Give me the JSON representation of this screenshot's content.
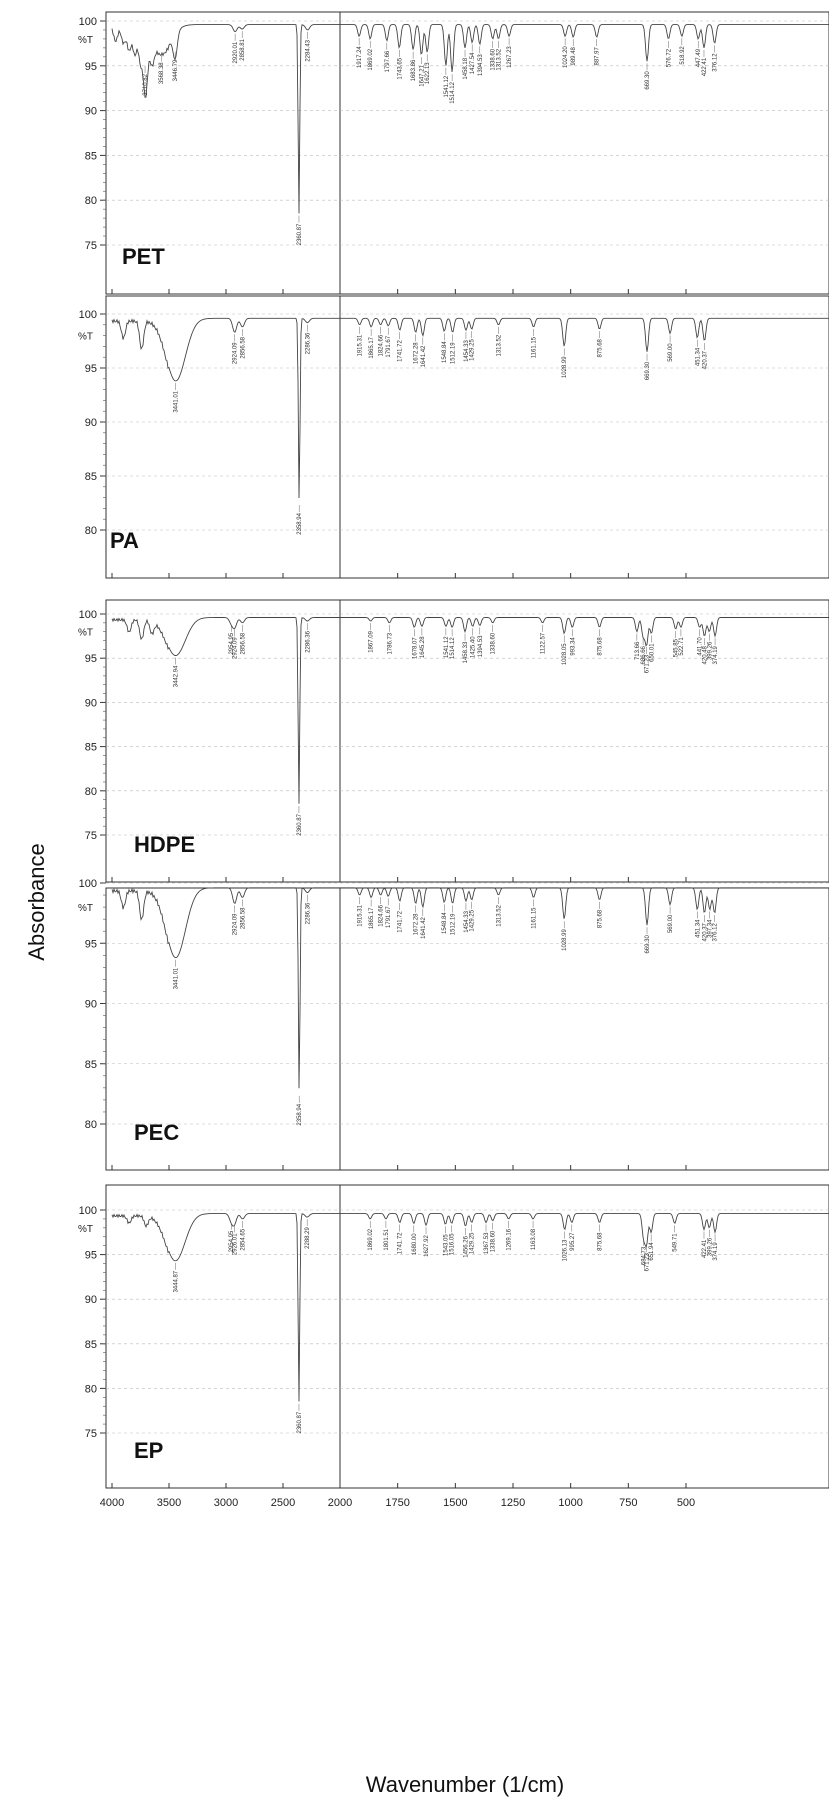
{
  "figure": {
    "ylabel": "Absorbance",
    "xlabel": "Wavenumber (1/cm)"
  },
  "chart_data": [
    {
      "type": "line",
      "name": "PET",
      "ylim": [
        73,
        101
      ],
      "yticks": [
        100,
        95,
        90,
        85,
        80,
        75
      ],
      "unit_label": "%T",
      "xlim": [
        4000,
        400
      ],
      "xticks": [
        4000,
        3500,
        3000,
        2500,
        2000,
        1750,
        1500,
        1250,
        1000,
        750,
        500
      ],
      "baseline": 99.6,
      "bands": [
        {
          "x": 3968,
          "y": 98.0
        },
        {
          "x": 3900,
          "y": 97.8
        },
        {
          "x": 3850,
          "y": 97.0
        },
        {
          "x": 3800,
          "y": 96.6
        },
        {
          "x": 3750,
          "y": 96.0
        },
        {
          "x": 3700,
          "y": 96.8
        },
        {
          "x": 3650,
          "y": 97.2
        },
        {
          "x": 3568,
          "y": 96.5,
          "label": "3568.38"
        },
        {
          "x": 3446,
          "y": 96.8,
          "label": "3446.79"
        },
        {
          "x": 3710,
          "y": 95.2,
          "label": "3710.82"
        },
        {
          "x": 2920,
          "y": 98.8,
          "label": "2920.01"
        },
        {
          "x": 2858,
          "y": 99.1,
          "label": "2858.81"
        },
        {
          "x": 2360,
          "y": 78.5,
          "label": "2360.87"
        },
        {
          "x": 2284,
          "y": 99.0,
          "label": "2284.43"
        },
        {
          "x": 1917,
          "y": 98.3,
          "label": "1917.24"
        },
        {
          "x": 1869,
          "y": 98.0,
          "label": "1869.02"
        },
        {
          "x": 1797,
          "y": 97.8,
          "label": "1797.66"
        },
        {
          "x": 1743,
          "y": 97.0,
          "label": "1743.65"
        },
        {
          "x": 1683,
          "y": 96.8,
          "label": "1683.86"
        },
        {
          "x": 1647,
          "y": 96.2,
          "label": "1647.21"
        },
        {
          "x": 1622,
          "y": 96.5,
          "label": "1622.13"
        },
        {
          "x": 1541,
          "y": 95.0,
          "label": "1541.12"
        },
        {
          "x": 1514,
          "y": 94.3,
          "label": "1514.12"
        },
        {
          "x": 1458,
          "y": 97.0,
          "label": "1458.18"
        },
        {
          "x": 1427,
          "y": 97.6,
          "label": "1427.54"
        },
        {
          "x": 1394,
          "y": 97.4,
          "label": "1394.53"
        },
        {
          "x": 1338,
          "y": 98.0,
          "label": "1338.60"
        },
        {
          "x": 1313,
          "y": 98.0,
          "label": "1313.52"
        },
        {
          "x": 1267,
          "y": 98.3,
          "label": "1267.23"
        },
        {
          "x": 1024,
          "y": 98.3,
          "label": "1024.20"
        },
        {
          "x": 989,
          "y": 98.2,
          "label": "989.48"
        },
        {
          "x": 887,
          "y": 98.2,
          "label": "887.97"
        },
        {
          "x": 669,
          "y": 95.5,
          "label": "669.30"
        },
        {
          "x": 576,
          "y": 98.0,
          "label": "576.72"
        },
        {
          "x": 518,
          "y": 98.3,
          "label": "518.92"
        },
        {
          "x": 447,
          "y": 98.0,
          "label": "447.49"
        },
        {
          "x": 422,
          "y": 97.0,
          "label": "422.41"
        },
        {
          "x": 376,
          "y": 97.5,
          "label": "376.12"
        }
      ]
    },
    {
      "type": "line",
      "name": "PA",
      "ylim": [
        78,
        101
      ],
      "yticks": [
        100,
        95,
        90,
        85,
        80
      ],
      "unit_label": "%T",
      "xlim": [
        4000,
        400
      ],
      "xticks": [
        4000,
        3500,
        3000,
        2500,
        2000,
        1750,
        1500,
        1250,
        1000,
        750,
        500
      ],
      "baseline": 99.6,
      "bands": [
        {
          "x": 3900,
          "y": 98.0
        },
        {
          "x": 3740,
          "y": 97.0
        },
        {
          "x": 3441,
          "y": 93.8,
          "label": "3441.01"
        },
        {
          "x": 2924,
          "y": 98.3,
          "label": "2924.09"
        },
        {
          "x": 2856,
          "y": 98.8,
          "label": "2856.58"
        },
        {
          "x": 2358,
          "y": 82.5,
          "label": "2358.94"
        },
        {
          "x": 2286,
          "y": 99.2,
          "label": "2286.36"
        },
        {
          "x": 1915,
          "y": 99.0,
          "label": "1915.31"
        },
        {
          "x": 1865,
          "y": 98.8,
          "label": "1865.17"
        },
        {
          "x": 1824,
          "y": 99.0,
          "label": "1824.66"
        },
        {
          "x": 1791,
          "y": 98.9,
          "label": "1791.67"
        },
        {
          "x": 1741,
          "y": 98.5,
          "label": "1741.72"
        },
        {
          "x": 1672,
          "y": 98.3,
          "label": "1672.28"
        },
        {
          "x": 1641,
          "y": 98.0,
          "label": "1641.42"
        },
        {
          "x": 1548,
          "y": 98.4,
          "label": "1548.84"
        },
        {
          "x": 1512,
          "y": 98.3,
          "label": "1512.19"
        },
        {
          "x": 1454,
          "y": 98.5,
          "label": "1454.33"
        },
        {
          "x": 1429,
          "y": 98.6,
          "label": "1429.25"
        },
        {
          "x": 1313,
          "y": 99.0,
          "label": "1313.52"
        },
        {
          "x": 1161,
          "y": 98.8,
          "label": "1161.15"
        },
        {
          "x": 1028,
          "y": 97.0,
          "label": "1028.99"
        },
        {
          "x": 875,
          "y": 98.6,
          "label": "875.68"
        },
        {
          "x": 669,
          "y": 96.5,
          "label": "669.30"
        },
        {
          "x": 569,
          "y": 98.2,
          "label": "569.00"
        },
        {
          "x": 451,
          "y": 97.8,
          "label": "451.34"
        },
        {
          "x": 420,
          "y": 97.5,
          "label": "420.37"
        }
      ]
    },
    {
      "type": "line",
      "name": "HDPE",
      "ylim": [
        73,
        101
      ],
      "yticks": [
        100,
        95,
        90,
        85,
        80,
        75
      ],
      "unit_label": "%T",
      "xlim": [
        4000,
        400
      ],
      "xticks": [
        4000,
        3500,
        3000,
        2500,
        2000,
        1750,
        1500,
        1250,
        1000,
        750,
        500
      ],
      "baseline": 99.6,
      "bands": [
        {
          "x": 3850,
          "y": 98.2
        },
        {
          "x": 3740,
          "y": 97.4
        },
        {
          "x": 3650,
          "y": 98.2
        },
        {
          "x": 3442,
          "y": 95.3,
          "label": "3442.94"
        },
        {
          "x": 2954,
          "y": 99.0,
          "label": "2954.95"
        },
        {
          "x": 2924,
          "y": 98.5,
          "label": "2924.09"
        },
        {
          "x": 2856,
          "y": 99.0,
          "label": "2856.58"
        },
        {
          "x": 2360,
          "y": 78.5,
          "label": "2360.87"
        },
        {
          "x": 2286,
          "y": 99.2,
          "label": "2286.36"
        },
        {
          "x": 1867,
          "y": 99.2,
          "label": "1867.09"
        },
        {
          "x": 1786,
          "y": 99.0,
          "label": "1786.73"
        },
        {
          "x": 1678,
          "y": 98.5,
          "label": "1678.07"
        },
        {
          "x": 1645,
          "y": 98.6,
          "label": "1645.28"
        },
        {
          "x": 1541,
          "y": 98.6,
          "label": "1541.12"
        },
        {
          "x": 1514,
          "y": 98.5,
          "label": "1514.12"
        },
        {
          "x": 1458,
          "y": 98.0,
          "label": "1458.33"
        },
        {
          "x": 1425,
          "y": 98.6,
          "label": "1425.40"
        },
        {
          "x": 1394,
          "y": 98.7,
          "label": "1394.53"
        },
        {
          "x": 1338,
          "y": 99.0,
          "label": "1338.60"
        },
        {
          "x": 1122,
          "y": 99.0,
          "label": "1122.57"
        },
        {
          "x": 1028,
          "y": 97.8,
          "label": "1028.05"
        },
        {
          "x": 993,
          "y": 98.5,
          "label": "993.34"
        },
        {
          "x": 875,
          "y": 98.5,
          "label": "875.68"
        },
        {
          "x": 713,
          "y": 98.0,
          "label": "713.66"
        },
        {
          "x": 686,
          "y": 97.5,
          "label": "686.66"
        },
        {
          "x": 671,
          "y": 96.5,
          "label": "671.23"
        },
        {
          "x": 650,
          "y": 97.8,
          "label": "650.01"
        },
        {
          "x": 545,
          "y": 98.3,
          "label": "545.85"
        },
        {
          "x": 522,
          "y": 98.5,
          "label": "522.71"
        },
        {
          "x": 441,
          "y": 98.5,
          "label": "441.70"
        },
        {
          "x": 420,
          "y": 97.5,
          "label": "420.48"
        },
        {
          "x": 399,
          "y": 98.0,
          "label": "399.26"
        },
        {
          "x": 374,
          "y": 97.5,
          "label": "374.19"
        }
      ]
    },
    {
      "type": "line",
      "name": "PEC",
      "ylim": [
        78,
        101
      ],
      "yticks": [
        100,
        95,
        90,
        85,
        80
      ],
      "unit_label": "%T",
      "xlim": [
        4000,
        400
      ],
      "xticks": [
        4000,
        3500,
        3000,
        2500,
        2000,
        1750,
        1500,
        1250,
        1000,
        750,
        500
      ],
      "baseline": 99.6,
      "bands": [
        {
          "x": 3900,
          "y": 98.2
        },
        {
          "x": 3740,
          "y": 97.2
        },
        {
          "x": 3441,
          "y": 93.8,
          "label": "3441.01"
        },
        {
          "x": 2924,
          "y": 98.3,
          "label": "2924.09"
        },
        {
          "x": 2856,
          "y": 98.8,
          "label": "2856.58"
        },
        {
          "x": 2358,
          "y": 82.5,
          "label": "2358.94"
        },
        {
          "x": 2286,
          "y": 99.2,
          "label": "2286.36"
        },
        {
          "x": 1915,
          "y": 99.0,
          "label": "1915.31"
        },
        {
          "x": 1865,
          "y": 98.8,
          "label": "1865.17"
        },
        {
          "x": 1824,
          "y": 99.0,
          "label": "1824.66"
        },
        {
          "x": 1791,
          "y": 98.9,
          "label": "1791.67"
        },
        {
          "x": 1741,
          "y": 98.5,
          "label": "1741.72"
        },
        {
          "x": 1672,
          "y": 98.3,
          "label": "1672.28"
        },
        {
          "x": 1641,
          "y": 98.0,
          "label": "1641.42"
        },
        {
          "x": 1548,
          "y": 98.4,
          "label": "1548.84"
        },
        {
          "x": 1512,
          "y": 98.3,
          "label": "1512.19"
        },
        {
          "x": 1454,
          "y": 98.5,
          "label": "1454.33"
        },
        {
          "x": 1429,
          "y": 98.6,
          "label": "1429.25"
        },
        {
          "x": 1313,
          "y": 99.0,
          "label": "1313.52"
        },
        {
          "x": 1161,
          "y": 98.8,
          "label": "1161.15"
        },
        {
          "x": 1028,
          "y": 97.0,
          "label": "1028.99"
        },
        {
          "x": 875,
          "y": 98.6,
          "label": "875.68"
        },
        {
          "x": 669,
          "y": 96.5,
          "label": "669.30"
        },
        {
          "x": 569,
          "y": 98.2,
          "label": "569.00"
        },
        {
          "x": 451,
          "y": 97.8,
          "label": "451.34"
        },
        {
          "x": 420,
          "y": 97.5,
          "label": "420.37"
        },
        {
          "x": 397,
          "y": 97.8,
          "label": "397.34"
        },
        {
          "x": 376,
          "y": 97.5,
          "label": "376.12"
        }
      ]
    },
    {
      "type": "line",
      "name": "EP",
      "ylim": [
        73,
        101
      ],
      "yticks": [
        100,
        95,
        90,
        85,
        80,
        75
      ],
      "unit_label": "%T",
      "xlim": [
        4000,
        400
      ],
      "xticks": [
        4000,
        3500,
        3000,
        2500,
        2000,
        1750,
        1500,
        1250,
        1000,
        750,
        500
      ],
      "xtick_labels": [
        "4000",
        "3500",
        "3000",
        "2500",
        "2000",
        "1750",
        "1500",
        "1250",
        "1000",
        "750",
        "500"
      ],
      "baseline": 99.6,
      "bands": [
        {
          "x": 3850,
          "y": 98.8
        },
        {
          "x": 3700,
          "y": 98.5
        },
        {
          "x": 3444,
          "y": 94.3,
          "label": "3444.87"
        },
        {
          "x": 2954,
          "y": 98.8,
          "label": "2954.95"
        },
        {
          "x": 2926,
          "y": 98.5,
          "label": "2926.01"
        },
        {
          "x": 2854,
          "y": 99.0,
          "label": "2854.65"
        },
        {
          "x": 2360,
          "y": 78.5,
          "label": "2360.87"
        },
        {
          "x": 2288,
          "y": 99.2,
          "label": "2288.29"
        },
        {
          "x": 1869,
          "y": 99.0,
          "label": "1869.02"
        },
        {
          "x": 1801,
          "y": 99.0,
          "label": "1801.51"
        },
        {
          "x": 1741,
          "y": 98.6,
          "label": "1741.72"
        },
        {
          "x": 1680,
          "y": 98.5,
          "label": "1680.00"
        },
        {
          "x": 1627,
          "y": 98.3,
          "label": "1627.92"
        },
        {
          "x": 1543,
          "y": 98.4,
          "label": "1543.05"
        },
        {
          "x": 1516,
          "y": 98.5,
          "label": "1516.05"
        },
        {
          "x": 1456,
          "y": 98.2,
          "label": "1456.26"
        },
        {
          "x": 1429,
          "y": 98.6,
          "label": "1429.25"
        },
        {
          "x": 1367,
          "y": 98.6,
          "label": "1367.53"
        },
        {
          "x": 1338,
          "y": 98.8,
          "label": "1338.60"
        },
        {
          "x": 1269,
          "y": 99.0,
          "label": "1269.16"
        },
        {
          "x": 1163,
          "y": 99.0,
          "label": "1163.08"
        },
        {
          "x": 1026,
          "y": 97.8,
          "label": "1026.13"
        },
        {
          "x": 995,
          "y": 98.6,
          "label": "995.27"
        },
        {
          "x": 875,
          "y": 98.6,
          "label": "875.68"
        },
        {
          "x": 684,
          "y": 97.0,
          "label": "684.73"
        },
        {
          "x": 671,
          "y": 96.3,
          "label": "671.23"
        },
        {
          "x": 651,
          "y": 97.5,
          "label": "651.94"
        },
        {
          "x": 549,
          "y": 98.5,
          "label": "549.71"
        },
        {
          "x": 422,
          "y": 97.8,
          "label": "422.41"
        },
        {
          "x": 399,
          "y": 98.0,
          "label": "399.26"
        },
        {
          "x": 374,
          "y": 97.5,
          "label": "374.19"
        }
      ]
    }
  ]
}
